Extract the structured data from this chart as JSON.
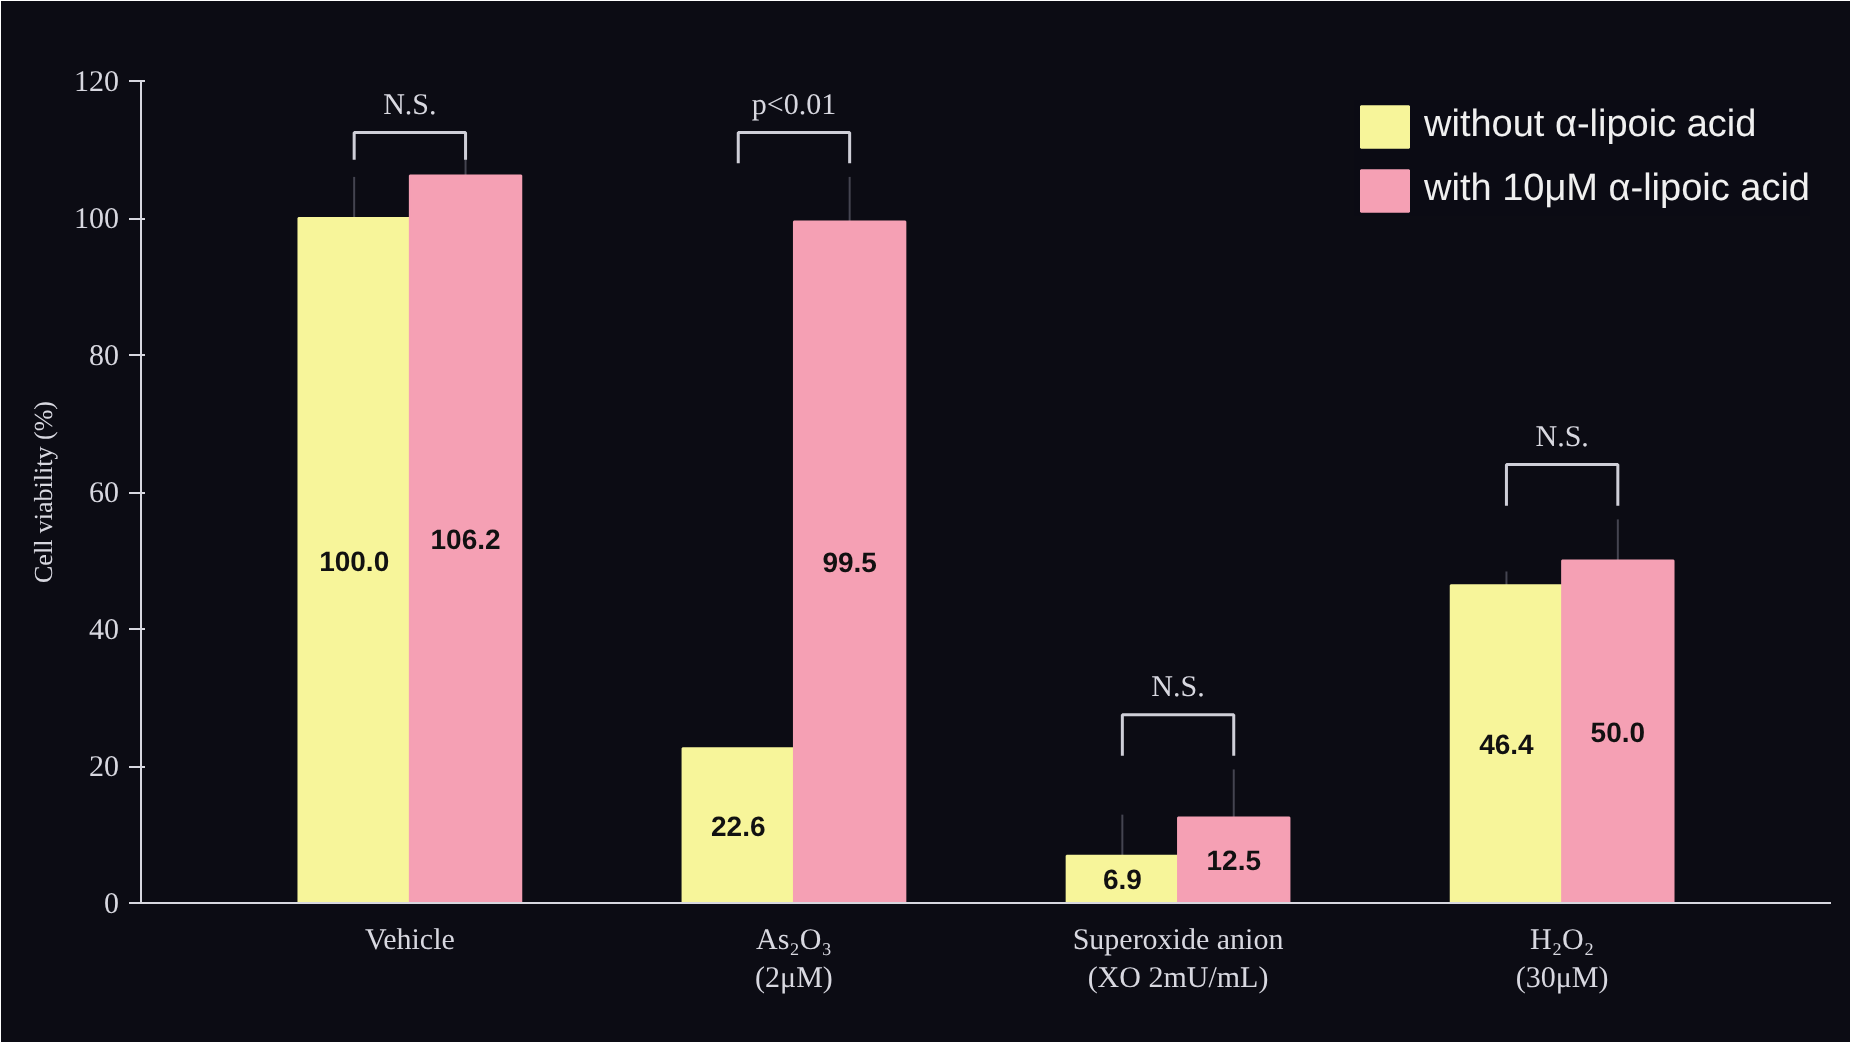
{
  "chart_data": {
    "type": "bar",
    "ylabel": "Cell viability (%)",
    "categories": [
      "Vehicle",
      "As₂O₃\n(2μM)",
      "Superoxide anion\n(XO 2mU/mL)",
      "H₂O₂\n(30μM)"
    ],
    "series": [
      {
        "name": "without α-lipoic acid",
        "color": "#f7f59a",
        "values": [
          100.0,
          22.6,
          6.9,
          46.4
        ],
        "value_labels": [
          "100.0",
          "22.6",
          "6.9",
          "46.4"
        ],
        "errors": [
          6,
          null,
          6,
          2
        ]
      },
      {
        "name": "with 10μM α-lipoic acid",
        "color": "#f5a0b4",
        "values": [
          106.2,
          99.5,
          12.5,
          50.0
        ],
        "value_labels": [
          "106.2",
          "99.5",
          "12.5",
          "50.0"
        ],
        "errors": [
          6,
          6.5,
          7,
          6
        ]
      }
    ],
    "ylim": [
      0,
      120
    ],
    "yticks": [
      0,
      20,
      40,
      60,
      80,
      100,
      120
    ],
    "legend": "top right",
    "grid": false,
    "annotations": [
      "N.S.",
      "p<0.01",
      "N.S.",
      "N.S."
    ]
  }
}
